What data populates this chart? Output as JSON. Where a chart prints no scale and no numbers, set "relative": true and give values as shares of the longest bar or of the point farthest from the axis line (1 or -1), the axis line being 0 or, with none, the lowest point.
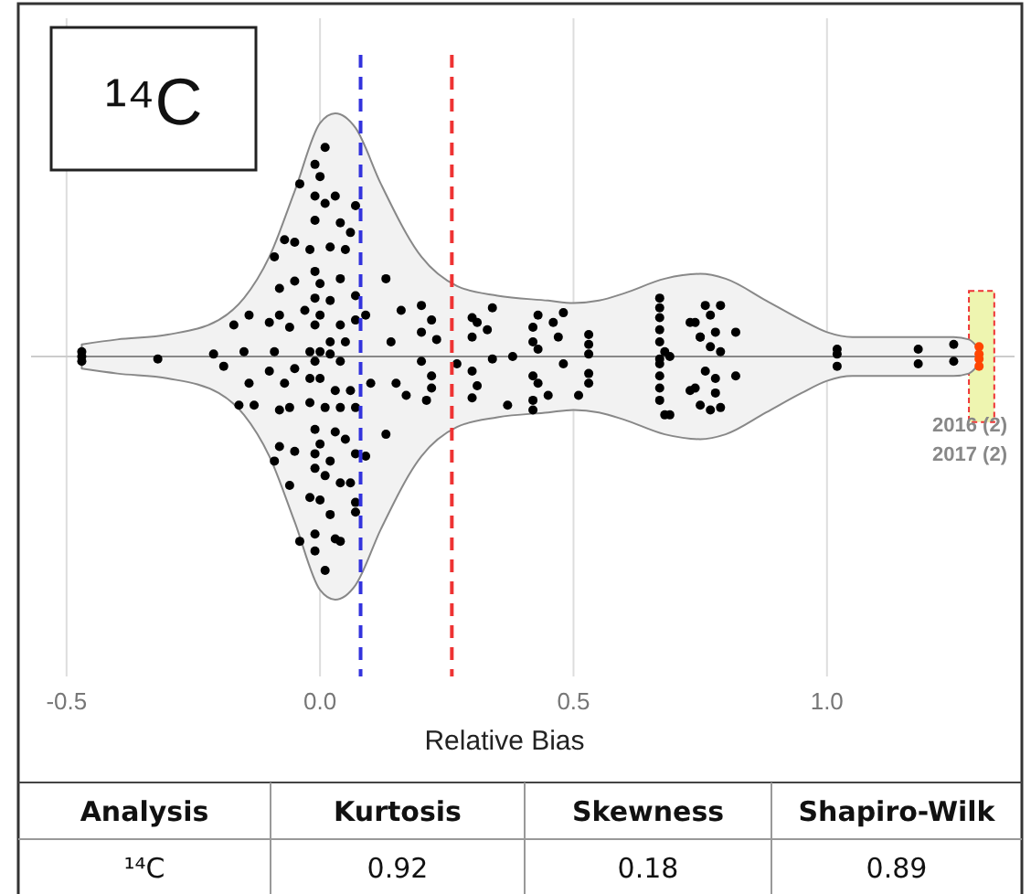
{
  "chart_data": [
    {
      "type": "scatter",
      "title": "¹⁴C",
      "xlabel": "Relative Bias",
      "relative": true,
      "xlim": [
        -0.57,
        1.37
      ],
      "xticks": [
        {
          "value": -0.5,
          "label": "-0.5"
        },
        {
          "value": 0,
          "label": "0.0"
        },
        {
          "value": 0.5,
          "label": "0.5"
        },
        {
          "value": 1,
          "label": "1.0"
        }
      ],
      "grid": "x",
      "tick_labels": "x",
      "series": [
        {
          "type": "area",
          "color": "#f2f2f2",
          "marker": "none",
          "x": [
            -0.47,
            -0.4,
            -0.3,
            -0.2,
            -0.15,
            -0.1,
            -0.05,
            0,
            0.03,
            0.07,
            0.12,
            0.2,
            0.27,
            0.35,
            0.45,
            0.5,
            0.55,
            0.6,
            0.68,
            0.75,
            0.8,
            0.88,
            0.95,
            1,
            1.05,
            1.15,
            1.25,
            1.28,
            1.3
          ],
          "values": [
            0.05,
            0.07,
            0.09,
            0.15,
            0.24,
            0.41,
            0.68,
            0.96,
            1,
            0.94,
            0.71,
            0.41,
            0.29,
            0.25,
            0.23,
            0.22,
            0.23,
            0.26,
            0.32,
            0.34,
            0.32,
            0.23,
            0.15,
            0.1,
            0.08,
            0.08,
            0.08,
            0.07,
            0.03
          ]
        },
        {
          "type": "area",
          "color": "#f2f2f2",
          "marker": "none",
          "x": [
            -0.47,
            -0.4,
            -0.3,
            -0.2,
            -0.15,
            -0.1,
            -0.05,
            0,
            0.03,
            0.07,
            0.12,
            0.2,
            0.27,
            0.35,
            0.45,
            0.5,
            0.55,
            0.6,
            0.68,
            0.75,
            0.8,
            0.88,
            0.95,
            1,
            1.05,
            1.15,
            1.25,
            1.28,
            1.3
          ],
          "values": [
            -0.05,
            -0.07,
            -0.09,
            -0.15,
            -0.24,
            -0.41,
            -0.68,
            -0.96,
            -1,
            -0.94,
            -0.71,
            -0.41,
            -0.29,
            -0.25,
            -0.23,
            -0.22,
            -0.23,
            -0.26,
            -0.32,
            -0.34,
            -0.32,
            -0.23,
            -0.15,
            -0.1,
            -0.08,
            -0.08,
            -0.08,
            -0.07,
            -0.03
          ]
        },
        {
          "type": "scatter",
          "color": "#000000",
          "marker": "circle",
          "x": [
            -0.47,
            -0.47,
            -0.47,
            -0.32,
            -0.21,
            -0.19,
            -0.17,
            -0.14,
            -0.15,
            -0.14,
            -0.16,
            -0.13,
            -0.1,
            -0.08,
            -0.09,
            -0.1,
            -0.07,
            -0.08,
            -0.09,
            -0.07,
            -0.05,
            -0.05,
            -0.06,
            -0.05,
            -0.08,
            -0.06,
            -0.08,
            -0.09,
            -0.05,
            -0.06,
            -0.04,
            -0.01,
            -0.01,
            0.01,
            0.01,
            -0.01,
            0,
            -0.04,
            -0.01,
            0.01,
            0.03,
            0.07,
            -0.01,
            0.04,
            0.06,
            0.02,
            -0.02,
            0.05,
            -0.01,
            0,
            0.04,
            0.02,
            -0.01,
            0.07,
            -0.03,
            0,
            0.04,
            -0.01,
            0.07,
            0.02,
            0.05,
            -0.02,
            0,
            0.02,
            -0.01,
            0.04,
            -0.02,
            0,
            0.03,
            0.06,
            -0.02,
            0.01,
            0.04,
            0.07,
            -0.01,
            0.03,
            0.05,
            0,
            -0.01,
            0.02,
            0.07,
            -0.01,
            0.01,
            0.04,
            0.06,
            -0.02,
            0,
            0.07,
            0.02,
            0.07,
            0.03,
            0.04,
            0.13,
            0.16,
            0.2,
            0.14,
            0.2,
            0.22,
            0.23,
            0.2,
            0.15,
            0.17,
            0.22,
            0.22,
            0.21,
            0.13,
            0.1,
            0.09,
            0.09,
            0.27,
            0.3,
            0.31,
            0.34,
            0.3,
            0.33,
            0.3,
            0.31,
            0.3,
            0.34,
            0.38,
            0.37,
            0.43,
            0.46,
            0.48,
            0.47,
            0.42,
            0.42,
            0.43,
            0.48,
            0.42,
            0.43,
            0.42,
            0.42,
            0.45,
            0.51,
            0.53,
            0.53,
            0.53,
            0.53,
            0.53,
            0.67,
            0.67,
            0.67,
            0.67,
            0.67,
            0.67,
            0.68,
            0.67,
            0.67,
            0.67,
            0.67,
            0.68,
            0.74,
            0.75,
            0.74,
            0.73,
            0.76,
            0.79,
            0.77,
            0.75,
            0.78,
            0.82,
            0.77,
            0.79,
            0.76,
            0.78,
            0.82,
            0.73,
            0.75,
            0.78,
            0.79,
            0.77,
            0.69,
            0.69,
            1.02,
            1.02,
            1.02,
            1.18,
            1.18,
            1.25,
            1.25
          ],
          "values": [
            0.02,
            0,
            -0.02,
            -0.01,
            0.01,
            -0.04,
            0.13,
            0.17,
            0.02,
            -0.11,
            -0.2,
            -0.2,
            0.14,
            0.17,
            0.02,
            -0.06,
            -0.11,
            0.28,
            0.41,
            0.48,
            0.47,
            0.31,
            0.12,
            -0.05,
            -0.22,
            -0.21,
            -0.37,
            -0.43,
            -0.39,
            -0.53,
            -0.76,
            -0.73,
            -0.8,
            -0.88,
            0.86,
            0.79,
            0.74,
            0.71,
            0.66,
            0.63,
            0.66,
            0.62,
            0.56,
            0.55,
            0.51,
            0.45,
            0.44,
            0.44,
            0.35,
            0.3,
            0.32,
            0.23,
            0.24,
            0.25,
            0.19,
            0.17,
            0.13,
            0.13,
            0.15,
            0.06,
            0.06,
            0.02,
            0.02,
            0.01,
            -0.02,
            -0.02,
            -0.09,
            -0.09,
            -0.14,
            -0.14,
            -0.19,
            -0.21,
            -0.21,
            -0.21,
            -0.3,
            -0.31,
            -0.34,
            -0.36,
            -0.4,
            -0.43,
            -0.4,
            -0.46,
            -0.49,
            -0.52,
            -0.52,
            -0.58,
            -0.59,
            -0.6,
            -0.65,
            -0.64,
            -0.75,
            -0.76,
            0.32,
            0.19,
            0.21,
            0.06,
            0.1,
            0.15,
            0.07,
            -0.02,
            -0.11,
            -0.16,
            -0.08,
            -0.13,
            -0.18,
            -0.32,
            -0.11,
            0.17,
            -0.41,
            -0.03,
            0.16,
            0.14,
            0.2,
            0.08,
            0.11,
            -0.06,
            -0.12,
            -0.17,
            -0.01,
            0,
            -0.2,
            0.17,
            0.14,
            0.18,
            0.08,
            0.12,
            0.06,
            0.03,
            -0.03,
            -0.08,
            -0.11,
            -0.18,
            -0.22,
            -0.16,
            -0.16,
            0.09,
            0.05,
            0.01,
            -0.07,
            -0.11,
            0.2,
            0.24,
            0.16,
            0.11,
            0.06,
            -0.01,
            0.02,
            -0.03,
            -0.08,
            -0.13,
            -0.18,
            -0.24,
            0.14,
            0.08,
            -0.13,
            0.14,
            0.21,
            0.21,
            0.17,
            0.08,
            0.1,
            0.1,
            0.04,
            0.02,
            -0.06,
            -0.09,
            -0.08,
            -0.14,
            -0.2,
            -0.15,
            -0.21,
            -0.22,
            -0.24,
            0,
            0.03,
            0.01,
            -0.04,
            0.03,
            -0.03,
            0.05,
            -0.02
          ]
        },
        {
          "type": "scatter",
          "color": "#ff4500",
          "marker": "circle",
          "x": [
            1.3,
            1.3,
            1.3,
            1.3
          ],
          "values": [
            0.04,
            0.01,
            -0.01,
            -0.04
          ]
        }
      ],
      "ref_lines": [
        {
          "axis": "x",
          "value": 0.08,
          "color": "#3333dd",
          "line_style": "dashed"
        },
        {
          "axis": "x",
          "value": 0.26,
          "color": "#ee3333",
          "line_style": "dashed"
        }
      ],
      "bands": [
        {
          "axis": "x",
          "from": 1.28,
          "to": 1.33,
          "color": "#eef5b0"
        }
      ],
      "annotations": [
        "2016 (2)",
        "2017 (2)"
      ]
    },
    {
      "type": "other",
      "xlabel": "Analysis",
      "categories": [
        "Kurtosis",
        "Skewness",
        "Shapiro-Wilk"
      ],
      "annotations": [
        "¹⁴C"
      ],
      "values": [
        0.92,
        0.18,
        0.89
      ],
      "data_labels": true
    }
  ]
}
